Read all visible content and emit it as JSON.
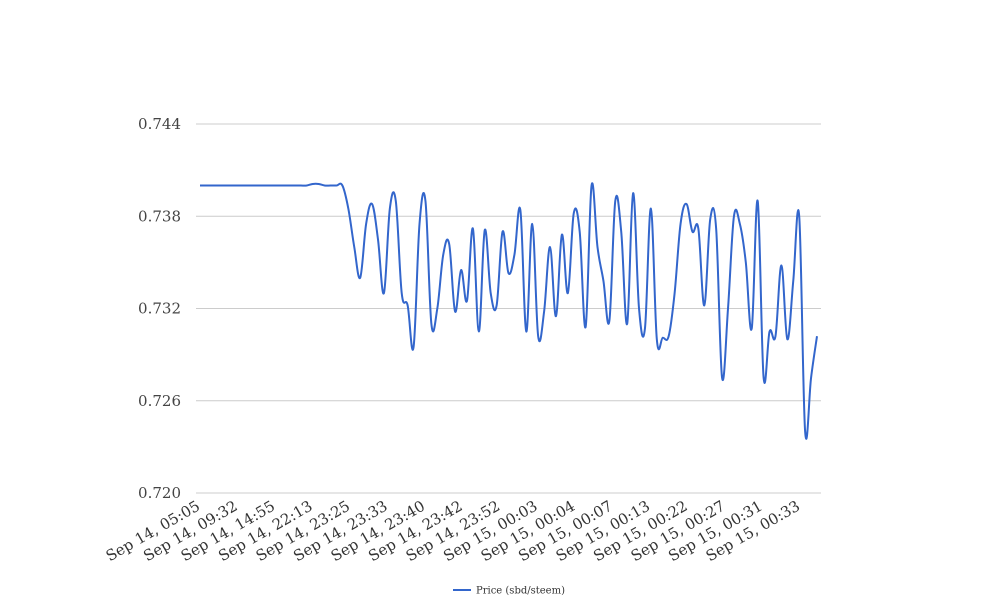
{
  "chart_data": {
    "type": "line",
    "title": "",
    "xlabel": "",
    "ylabel": "",
    "ylim": [
      0.72,
      0.744
    ],
    "yticks": [
      "0.720",
      "0.726",
      "0.732",
      "0.738",
      "0.744"
    ],
    "grid": true,
    "legend_position": "bottom",
    "x_tick_labels": [
      "Sep 14, 05:05",
      "Sep 14, 09:32",
      "Sep 14, 14:55",
      "Sep 14, 22:13",
      "Sep 14, 23:25",
      "Sep 14, 23:33",
      "Sep 14, 23:40",
      "Sep 14, 23:42",
      "Sep 14, 23:52",
      "Sep 15, 00:03",
      "Sep 15, 00:04",
      "Sep 15, 00:07",
      "Sep 15, 00:13",
      "Sep 15, 00:22",
      "Sep 15, 00:27",
      "Sep 15, 00:31",
      "Sep 15, 00:33"
    ],
    "series": [
      {
        "name": "Price (sbd/steem)",
        "color": "#3366cc",
        "values": [
          0.74,
          0.74,
          0.74,
          0.74,
          0.74,
          0.74,
          0.74,
          0.74,
          0.74,
          0.74,
          0.74,
          0.74,
          0.74,
          0.74,
          0.74,
          0.74,
          0.74,
          0.74,
          0.74,
          0.7401,
          0.7401,
          0.74,
          0.74,
          0.74,
          0.74,
          0.7385,
          0.736,
          0.734,
          0.7375,
          0.7388,
          0.7365,
          0.733,
          0.7385,
          0.739,
          0.733,
          0.7322,
          0.7295,
          0.7375,
          0.739,
          0.731,
          0.732,
          0.7355,
          0.7362,
          0.7318,
          0.7345,
          0.7325,
          0.7372,
          0.7305,
          0.7371,
          0.733,
          0.7322,
          0.737,
          0.7343,
          0.7355,
          0.7384,
          0.7305,
          0.7375,
          0.7302,
          0.7318,
          0.736,
          0.7315,
          0.7368,
          0.733,
          0.7382,
          0.737,
          0.7308,
          0.74,
          0.736,
          0.7338,
          0.7312,
          0.739,
          0.737,
          0.731,
          0.7395,
          0.732,
          0.7307,
          0.7385,
          0.73,
          0.7301,
          0.7302,
          0.733,
          0.7375,
          0.7388,
          0.737,
          0.7372,
          0.7322,
          0.7378,
          0.7372,
          0.7275,
          0.732,
          0.738,
          0.7375,
          0.735,
          0.7307,
          0.739,
          0.7275,
          0.7305,
          0.7302,
          0.7348,
          0.73,
          0.7338,
          0.738,
          0.724,
          0.7275,
          0.7302
        ]
      }
    ]
  }
}
